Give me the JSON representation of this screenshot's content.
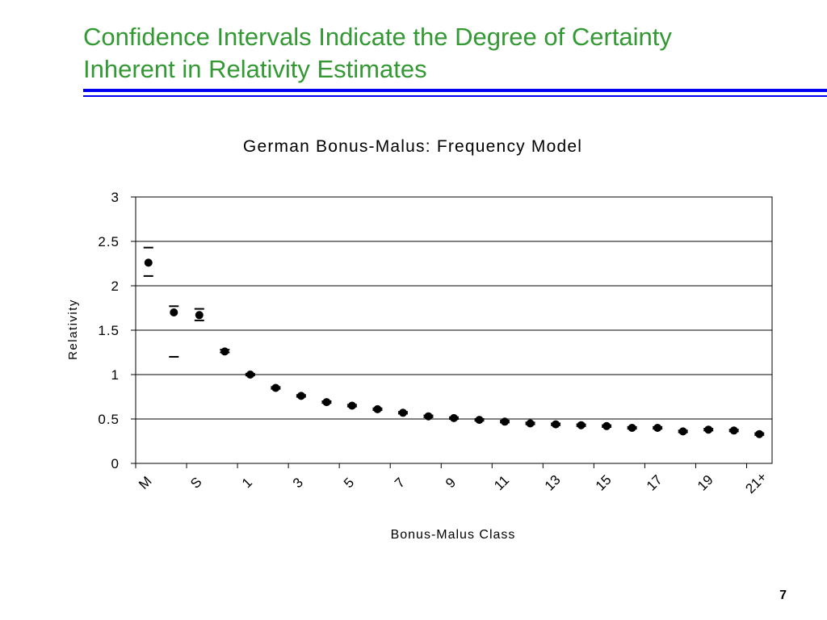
{
  "slide": {
    "title_lines": [
      "Confidence Intervals Indicate the Degree of Certainty",
      "Inherent in Relativity Estimates"
    ],
    "page_number": "7",
    "title_color": "#339933",
    "rule_color": "#0000ee"
  },
  "chart_data": {
    "type": "scatter",
    "title": "German Bonus-Malus: Frequency Model",
    "xlabel": "Bonus-Malus Class",
    "ylabel": "Relativity",
    "ylim": [
      0,
      3
    ],
    "yticks": [
      0,
      0.5,
      1,
      1.5,
      2,
      2.5,
      3
    ],
    "ytick_labels": [
      "0",
      "0.5",
      "1",
      "1.5",
      "2",
      "2.5",
      "3"
    ],
    "grid": "horizontal",
    "legend": "none",
    "categories": [
      "M",
      "",
      "S",
      "",
      "1",
      "",
      "3",
      "",
      "5",
      "",
      "7",
      "",
      "9",
      "",
      "11",
      "",
      "13",
      "",
      "15",
      "",
      "17",
      "",
      "19",
      "",
      "21+"
    ],
    "values": [
      2.26,
      1.7,
      1.67,
      1.26,
      1.0,
      0.85,
      0.76,
      0.69,
      0.65,
      0.61,
      0.57,
      0.53,
      0.51,
      0.49,
      0.47,
      0.45,
      0.44,
      0.43,
      0.42,
      0.4,
      0.4,
      0.36,
      0.38,
      0.37,
      0.33
    ],
    "ci_lower": [
      2.11,
      1.2,
      1.61,
      1.25,
      0.99,
      0.84,
      0.75,
      0.68,
      0.64,
      0.6,
      0.56,
      0.52,
      0.5,
      0.48,
      0.46,
      0.44,
      0.43,
      0.42,
      0.41,
      0.39,
      0.39,
      0.35,
      0.37,
      0.36,
      0.32
    ],
    "ci_upper": [
      2.43,
      1.77,
      1.74,
      1.28,
      1.01,
      0.86,
      0.77,
      0.7,
      0.66,
      0.62,
      0.58,
      0.54,
      0.52,
      0.5,
      0.48,
      0.46,
      0.45,
      0.44,
      0.43,
      0.41,
      0.41,
      0.37,
      0.39,
      0.38,
      0.34
    ],
    "marker_color": "#000000"
  }
}
